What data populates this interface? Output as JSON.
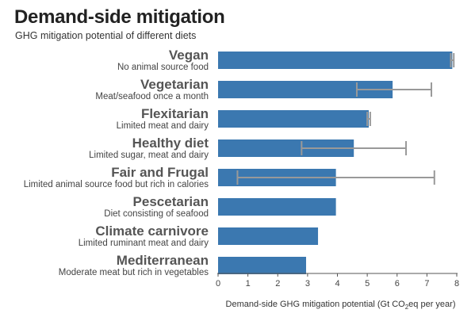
{
  "chart_data": {
    "type": "bar",
    "orientation": "horizontal",
    "title": "Demand-side mitigation",
    "subtitle": "GHG mitigation potential of different diets",
    "xlabel_parts": [
      "Demand-side GHG mitigation potential (Gt CO",
      "2",
      "eq per year)"
    ],
    "xlim": [
      0,
      8
    ],
    "xticks": [
      "0",
      "1",
      "2",
      "3",
      "4",
      "5",
      "6",
      "7",
      "8"
    ],
    "bar_color": "#3b78b0",
    "error_bar_color": "#999999",
    "grid": false,
    "categories": [
      {
        "name": "Vegan",
        "description": "No animal source food",
        "value": 7.85,
        "err_low": 7.8,
        "err_high": 7.9
      },
      {
        "name": "Vegetarian",
        "description": "Meat/seafood once a month",
        "value": 5.85,
        "err_low": 4.65,
        "err_high": 7.15
      },
      {
        "name": "Flexitarian",
        "description": "Limited meat and dairy",
        "value": 5.05,
        "err_low": 5.0,
        "err_high": 5.1
      },
      {
        "name": "Healthy diet",
        "description": "Limited sugar, meat and dairy",
        "value": 4.55,
        "err_low": 2.8,
        "err_high": 6.3
      },
      {
        "name": "Fair and Frugal",
        "description": "Limited animal source food but rich in calories",
        "value": 3.95,
        "err_low": 0.65,
        "err_high": 7.25
      },
      {
        "name": "Pescetarian",
        "description": "Diet consisting of seafood",
        "value": 3.95,
        "err_low": null,
        "err_high": null
      },
      {
        "name": "Climate carnivore",
        "description": "Limited ruminant meat and dairy",
        "value": 3.35,
        "err_low": null,
        "err_high": null
      },
      {
        "name": "Mediterranean",
        "description": "Moderate meat but rich in vegetables",
        "value": 2.95,
        "err_low": null,
        "err_high": null
      }
    ]
  }
}
